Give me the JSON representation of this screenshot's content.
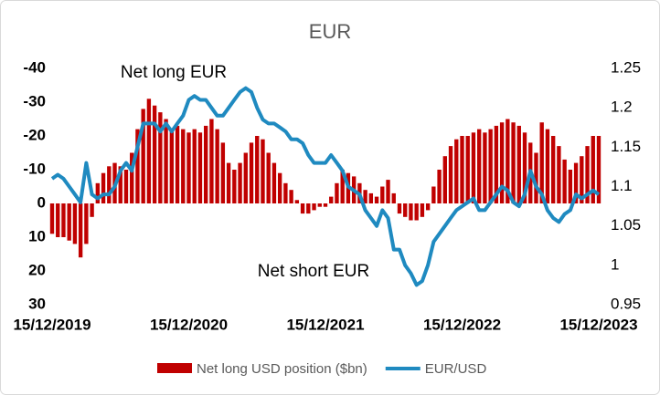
{
  "chart_data": {
    "type": "bar_line",
    "title": "EUR",
    "annotations": [
      "Net long EUR",
      "Net short EUR"
    ],
    "categories": [
      "15/12/2019",
      null,
      null,
      null,
      null,
      null,
      null,
      null,
      null,
      null,
      null,
      null,
      null,
      null,
      null,
      null,
      null,
      null,
      null,
      null,
      null,
      null,
      null,
      null,
      "15/12/2020",
      null,
      null,
      null,
      null,
      null,
      null,
      null,
      null,
      null,
      null,
      null,
      null,
      null,
      null,
      null,
      null,
      null,
      null,
      null,
      null,
      null,
      null,
      null,
      "15/12/2021",
      null,
      null,
      null,
      null,
      null,
      null,
      null,
      null,
      null,
      null,
      null,
      null,
      null,
      null,
      null,
      null,
      null,
      null,
      null,
      null,
      null,
      null,
      null,
      "15/12/2022",
      null,
      null,
      null,
      null,
      null,
      null,
      null,
      null,
      null,
      null,
      null,
      null,
      null,
      null,
      null,
      null,
      null,
      null,
      null,
      null,
      null,
      null,
      null,
      "15/12/2023"
    ],
    "series": [
      {
        "name": "Net long USD position ($bn)",
        "kind": "bar",
        "axis": "y",
        "color": "#c00000",
        "values": [
          9,
          10,
          10,
          11,
          12,
          16,
          12,
          4,
          -6,
          -9,
          -11,
          -12,
          -11,
          -10,
          -15,
          -22,
          -28,
          -31,
          -29,
          -27,
          -25,
          -22,
          -23,
          -22,
          -21,
          -22,
          -21,
          -23,
          -25,
          -22,
          -18,
          -12,
          -10,
          -12,
          -15,
          -18,
          -20,
          -19,
          -15,
          -12,
          -9,
          -6,
          -4,
          -1,
          3,
          3,
          2,
          1,
          1,
          -2,
          -6,
          -10,
          -9,
          -8,
          -6,
          -4,
          -3,
          -2,
          -5,
          -7,
          -3,
          3,
          4,
          5,
          5,
          4,
          2,
          -5,
          -10,
          -14,
          -17,
          -19,
          -20,
          -20,
          -21,
          -22,
          -21,
          -22,
          -23,
          -24,
          -25,
          -24,
          -23,
          -21,
          -18,
          -15,
          -24,
          -22,
          -20,
          -17,
          -13,
          -10,
          -12,
          -14,
          -17,
          -20,
          -20
        ]
      },
      {
        "name": "EUR/USD",
        "kind": "line",
        "axis": "y2",
        "color": "#1f8ac0",
        "values": [
          1.11,
          1.115,
          1.11,
          1.1,
          1.09,
          1.08,
          1.13,
          1.09,
          1.085,
          1.09,
          1.09,
          1.1,
          1.12,
          1.13,
          1.12,
          1.15,
          1.18,
          1.18,
          1.18,
          1.17,
          1.18,
          1.17,
          1.18,
          1.19,
          1.21,
          1.215,
          1.21,
          1.21,
          1.2,
          1.19,
          1.19,
          1.2,
          1.21,
          1.22,
          1.225,
          1.22,
          1.2,
          1.185,
          1.18,
          1.18,
          1.175,
          1.17,
          1.16,
          1.16,
          1.155,
          1.14,
          1.13,
          1.13,
          1.13,
          1.14,
          1.13,
          1.12,
          1.1,
          1.095,
          1.09,
          1.07,
          1.06,
          1.05,
          1.07,
          1.06,
          1.02,
          1.02,
          1,
          0.99,
          0.975,
          0.98,
          1,
          1.03,
          1.04,
          1.05,
          1.06,
          1.07,
          1.075,
          1.08,
          1.085,
          1.07,
          1.07,
          1.08,
          1.09,
          1.1,
          1.095,
          1.08,
          1.075,
          1.09,
          1.12,
          1.1,
          1.09,
          1.07,
          1.06,
          1.055,
          1.065,
          1.07,
          1.09,
          1.085,
          1.09,
          1.095,
          1.09
        ]
      }
    ],
    "ylim": [
      -40,
      30
    ],
    "y_inverted": true,
    "yticks": [
      -40,
      -30,
      -20,
      -10,
      0,
      10,
      20,
      30
    ],
    "y2lim": [
      0.95,
      1.25
    ],
    "y2ticks": [
      0.95,
      1,
      1.05,
      1.1,
      1.15,
      1.2,
      1.25
    ],
    "legend": "bottom"
  }
}
